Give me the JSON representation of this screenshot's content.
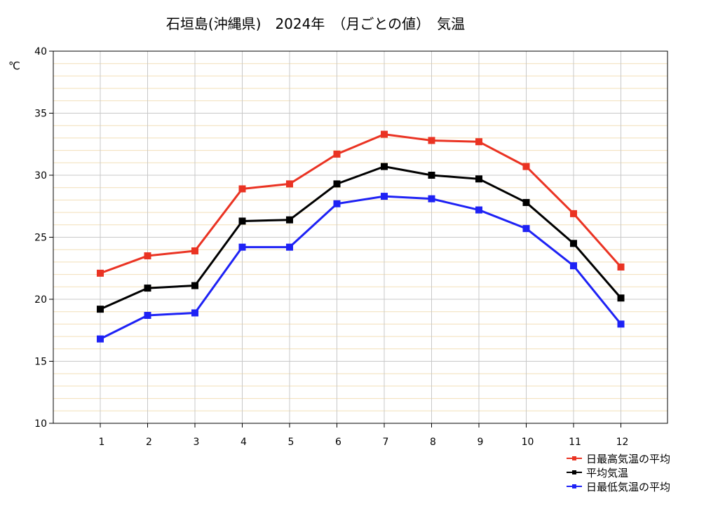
{
  "chart_data": {
    "type": "line",
    "title": "石垣島(沖縄県)　2024年　（月ごとの値）　気温",
    "ylabel": "℃",
    "xlabel": "",
    "ylim": [
      10,
      40
    ],
    "y_ticks": [
      10,
      15,
      20,
      25,
      30,
      35,
      40
    ],
    "categories": [
      "1",
      "2",
      "3",
      "4",
      "5",
      "6",
      "7",
      "8",
      "9",
      "10",
      "11",
      "12"
    ],
    "grid": "on",
    "legend_position": "bottom-right",
    "series": [
      {
        "name": "日最高気温の平均",
        "color": "#ea3323",
        "values": [
          22.1,
          23.5,
          23.9,
          28.9,
          29.3,
          31.7,
          33.3,
          32.8,
          32.7,
          30.7,
          26.9,
          22.6
        ]
      },
      {
        "name": "平均気温",
        "color": "#000000",
        "values": [
          19.2,
          20.9,
          21.1,
          26.3,
          26.4,
          29.3,
          30.7,
          30.0,
          29.7,
          27.8,
          24.5,
          20.1
        ]
      },
      {
        "name": "日最低気温の平均",
        "color": "#1e22f5",
        "values": [
          16.8,
          18.7,
          18.9,
          24.2,
          24.2,
          27.7,
          28.3,
          28.1,
          27.2,
          25.7,
          22.7,
          18.0
        ]
      }
    ]
  }
}
